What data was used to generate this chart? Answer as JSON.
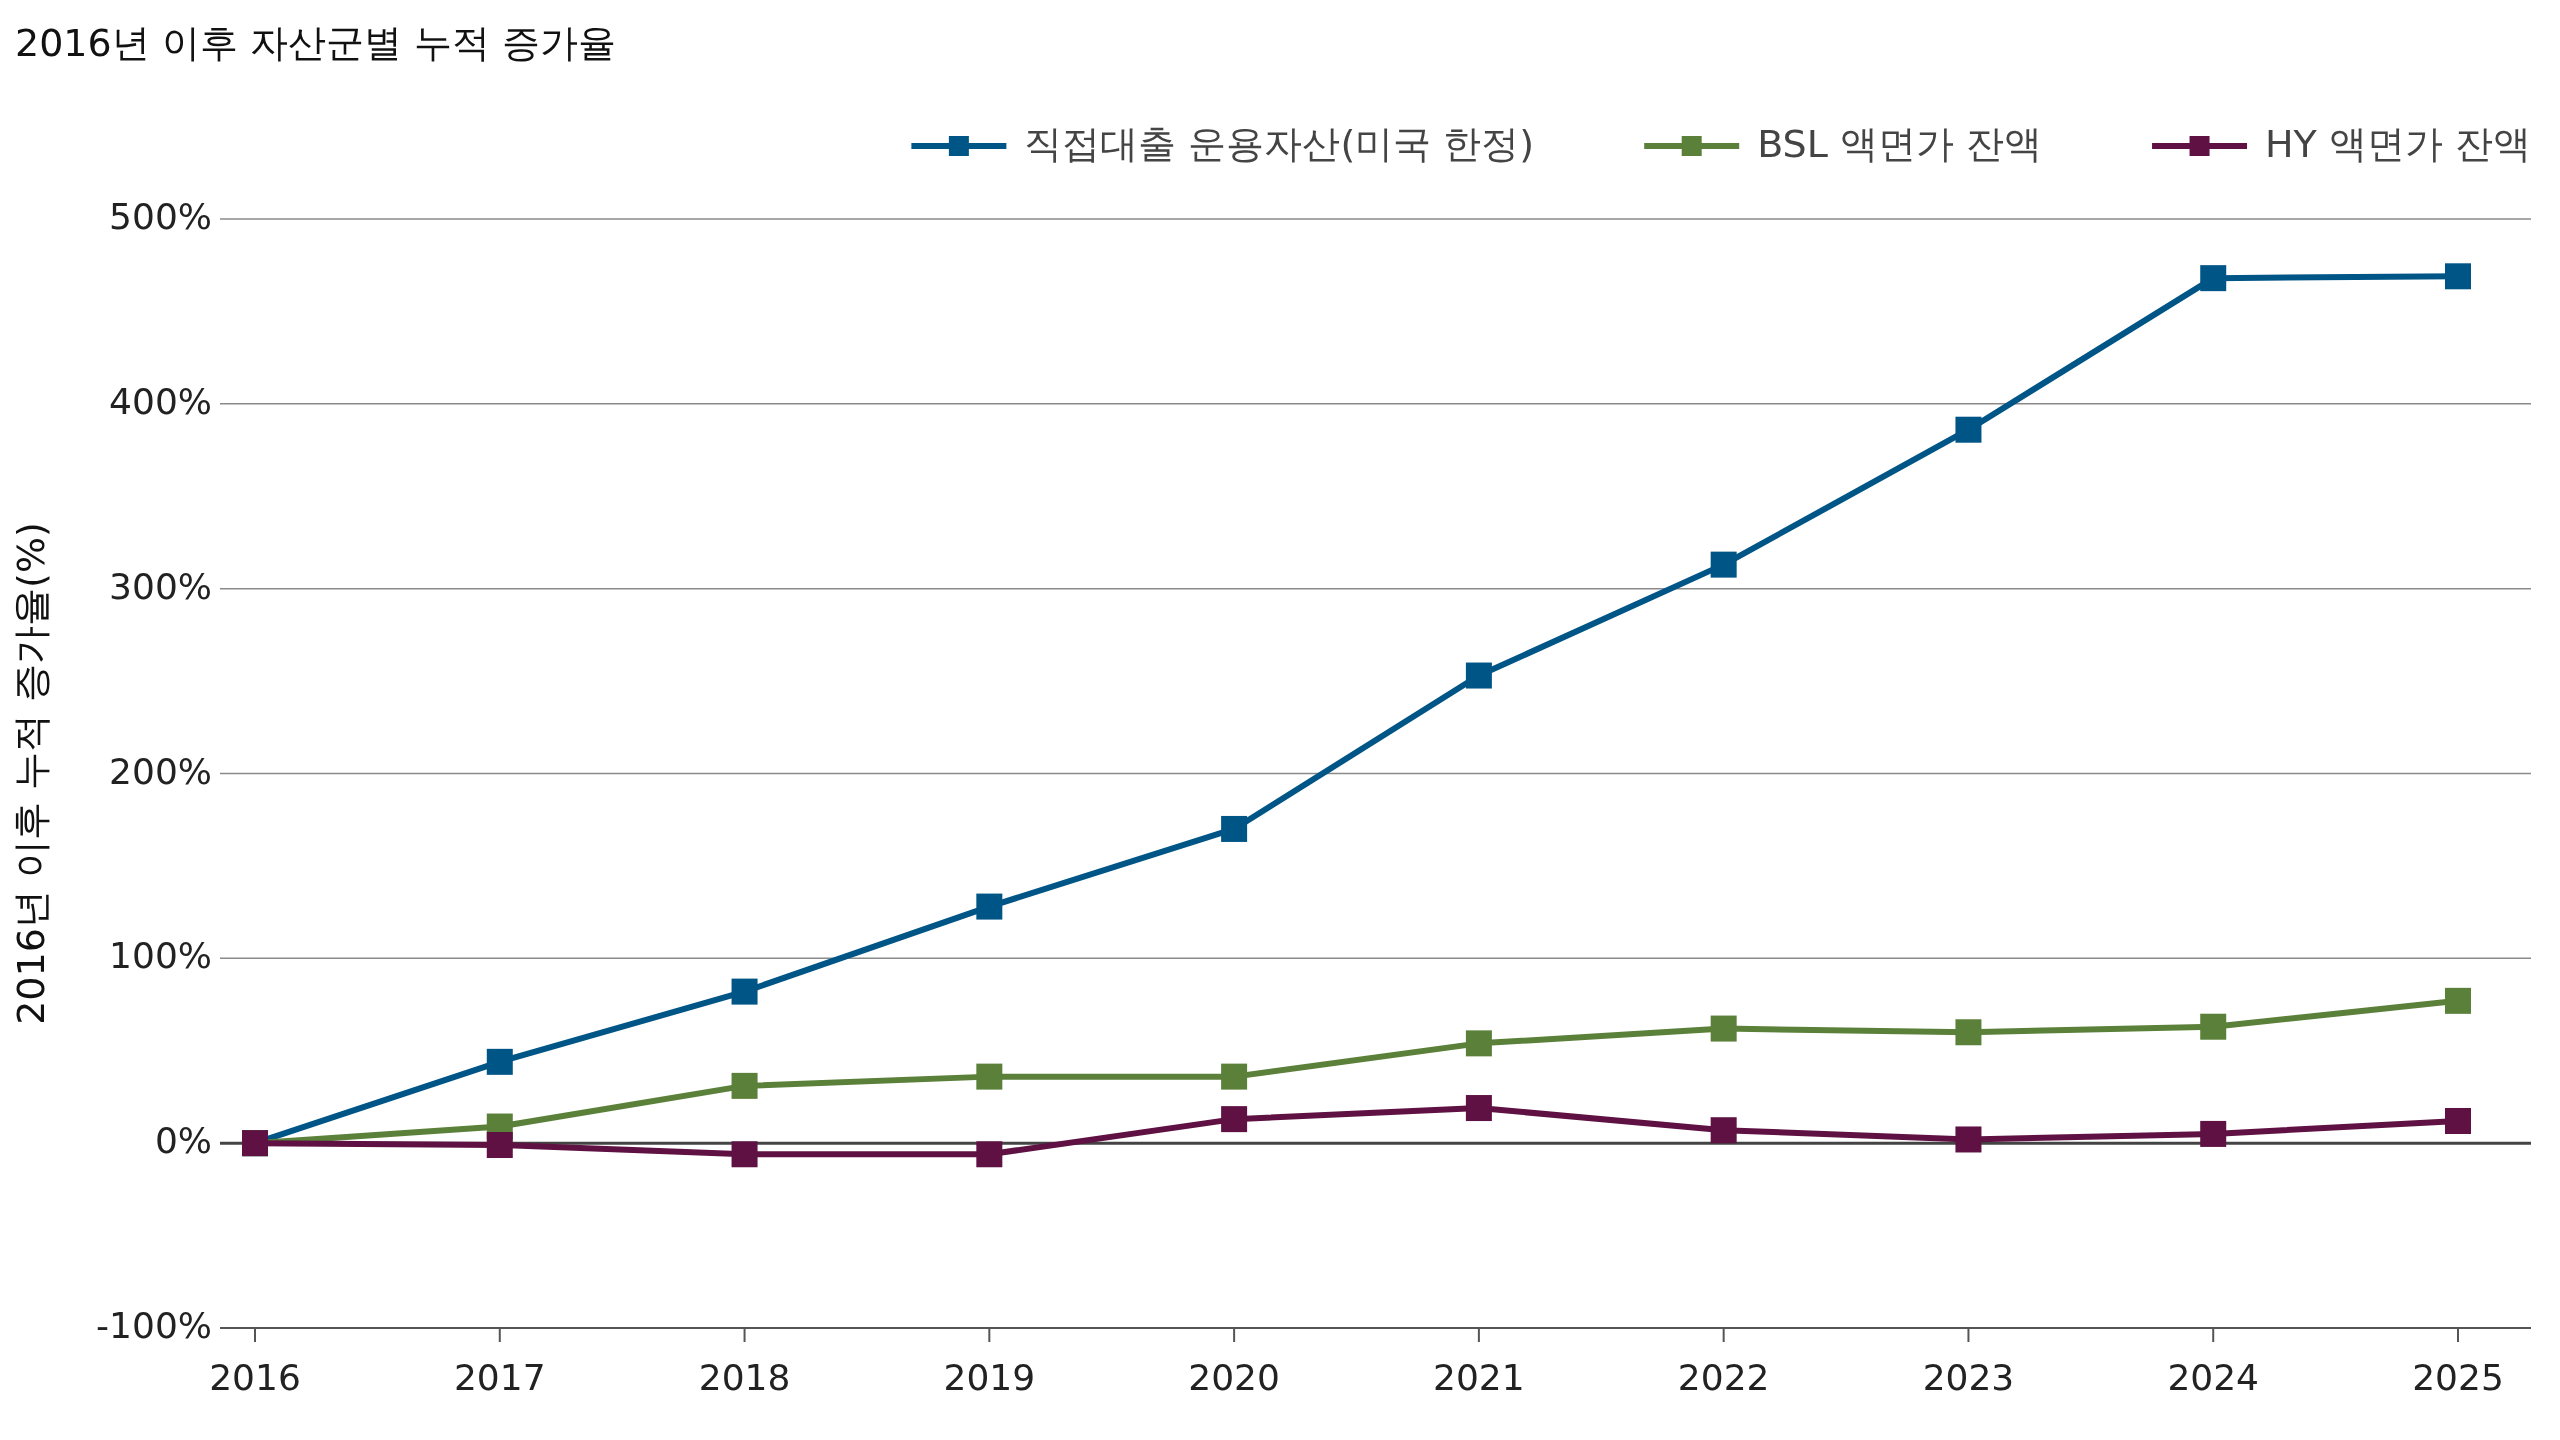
{
  "chart_data": {
    "type": "line",
    "title": "2016년 이후 자산군별 누적 증가율",
    "ylabel": "2016년 이후 누적 증가율(%)",
    "categories": [
      "2016",
      "2017",
      "2018",
      "2019",
      "2020",
      "2021",
      "2022",
      "2023",
      "2024",
      "2025"
    ],
    "series": [
      {
        "name": "직접대출 운용자산(미국 한정)",
        "color": "#005587",
        "values": [
          0,
          44,
          82,
          128,
          170,
          253,
          313,
          386,
          468,
          469
        ]
      },
      {
        "name": "BSL 액면가 잔액",
        "color": "#5b803a",
        "values": [
          0,
          9,
          31,
          36,
          36,
          54,
          62,
          60,
          63,
          77
        ]
      },
      {
        "name": "HY 액면가 잔액",
        "color": "#5e1142",
        "values": [
          0,
          -1,
          -6,
          -6,
          13,
          19,
          7,
          2,
          5,
          12
        ]
      }
    ],
    "ylim": [
      -100,
      500
    ],
    "yticks": [
      {
        "value": -100,
        "label": "-100%"
      },
      {
        "value": 0,
        "label": "0%"
      },
      {
        "value": 100,
        "label": "100%"
      },
      {
        "value": 200,
        "label": "200%"
      },
      {
        "value": 300,
        "label": "300%"
      },
      {
        "value": 400,
        "label": "400%"
      },
      {
        "value": 500,
        "label": "500%"
      }
    ],
    "ref_lines": [
      {
        "axis": "y",
        "value": 0,
        "color": "#444444"
      }
    ],
    "grid": "y",
    "legend": "top right",
    "marker": "square",
    "line_style": "solid"
  }
}
